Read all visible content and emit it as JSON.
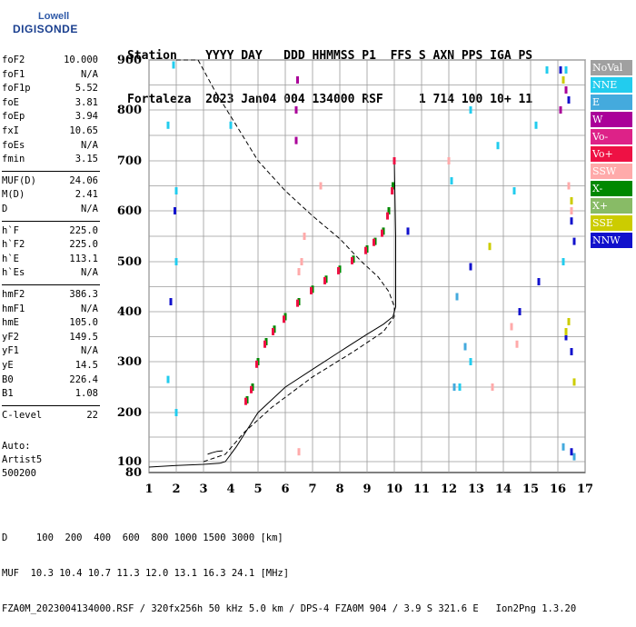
{
  "logo": {
    "line1": "Lowell",
    "line2": "DIGISONDE"
  },
  "header": {
    "line1": "Station    YYYY DAY   DDD HHMMSS P1  FFS S AXN PPS IGA PS",
    "line2": "Fortaleza  2023 Jan04 004 134000 RSF     1 714 100 10+ 11"
  },
  "params": {
    "group1": [
      {
        "k": "foF2",
        "v": "10.000"
      },
      {
        "k": "foF1",
        "v": "N/A"
      },
      {
        "k": "foF1p",
        "v": "5.52"
      },
      {
        "k": "foE",
        "v": "3.81"
      },
      {
        "k": "foEp",
        "v": "3.94"
      },
      {
        "k": "fxI",
        "v": "10.65"
      },
      {
        "k": "foEs",
        "v": "N/A"
      },
      {
        "k": "fmin",
        "v": "3.15"
      }
    ],
    "group2": [
      {
        "k": "MUF(D)",
        "v": "24.06"
      },
      {
        "k": "M(D)",
        "v": "2.41"
      },
      {
        "k": "D",
        "v": "N/A"
      }
    ],
    "group3": [
      {
        "k": "h`F",
        "v": "225.0"
      },
      {
        "k": "h`F2",
        "v": "225.0"
      },
      {
        "k": "h`E",
        "v": "113.1"
      },
      {
        "k": "h`Es",
        "v": "N/A"
      }
    ],
    "group4": [
      {
        "k": "hmF2",
        "v": "386.3"
      },
      {
        "k": "hmF1",
        "v": "N/A"
      },
      {
        "k": "hmE",
        "v": "105.0"
      },
      {
        "k": "yF2",
        "v": "149.5"
      },
      {
        "k": "yF1",
        "v": "N/A"
      },
      {
        "k": "yE",
        "v": "14.5"
      },
      {
        "k": "B0",
        "v": "226.4"
      },
      {
        "k": "B1",
        "v": "1.08"
      }
    ],
    "group5": [
      {
        "k": "C-level",
        "v": "22"
      }
    ]
  },
  "auto": {
    "line1": "Auto:",
    "line2": "Artist5",
    "line3": "500200"
  },
  "legend": [
    {
      "label": "NoVal",
      "color": "#a0a0a0"
    },
    {
      "label": "NNE",
      "color": "#22ccee"
    },
    {
      "label": "E",
      "color": "#44aadd"
    },
    {
      "label": "W",
      "color": "#aa0099"
    },
    {
      "label": "Vo-",
      "color": "#dd2288"
    },
    {
      "label": "Vo+",
      "color": "#ee1144"
    },
    {
      "label": "SSW",
      "color": "#ffaaaa"
    },
    {
      "label": "X-",
      "color": "#008800"
    },
    {
      "label": "X+",
      "color": "#88bb66"
    },
    {
      "label": "SSE",
      "color": "#cccc00"
    },
    {
      "label": "NNW",
      "color": "#1111cc"
    }
  ],
  "footer": {
    "line1": "D     100  200  400  600  800 1000 1500 3000 [km]",
    "line2": "MUF  10.3 10.4 10.7 11.3 12.0 13.1 16.3 24.1 [MHz]",
    "line3": "FZA0M_2023004134000.RSF / 320fx256h 50 kHz 5.0 km / DPS-4 FZA0M 904 / 3.9 S 321.6 E   Ion2Png 1.3.20"
  },
  "chart_data": {
    "type": "scatter",
    "x_ticks": [
      "1",
      "2",
      "3",
      "4",
      "5",
      "6",
      "7",
      "8",
      "9",
      "10",
      "11",
      "12",
      "13",
      "14",
      "15",
      "16",
      "17"
    ],
    "y_ticks": [
      "80",
      "100",
      "200",
      "300",
      "400",
      "500",
      "600",
      "700",
      "800",
      "900"
    ],
    "xlim": [
      1,
      17
    ],
    "ylim": [
      80,
      900
    ],
    "grid": true,
    "series": [
      {
        "name": "X-",
        "color": "#008800",
        "points": [
          [
            4.6,
            225
          ],
          [
            4.8,
            250
          ],
          [
            5.0,
            300
          ],
          [
            5.3,
            340
          ],
          [
            5.6,
            365
          ],
          [
            6.0,
            390
          ],
          [
            6.5,
            420
          ],
          [
            7.0,
            445
          ],
          [
            7.5,
            465
          ],
          [
            8.0,
            485
          ],
          [
            8.5,
            505
          ],
          [
            9.0,
            525
          ],
          [
            9.3,
            540
          ],
          [
            9.6,
            560
          ],
          [
            9.8,
            600
          ],
          [
            9.95,
            650
          ]
        ]
      },
      {
        "name": "Vo+",
        "color": "#ee1144",
        "points": [
          [
            4.55,
            222
          ],
          [
            4.75,
            245
          ],
          [
            4.95,
            295
          ],
          [
            5.25,
            335
          ],
          [
            5.55,
            360
          ],
          [
            5.95,
            385
          ],
          [
            6.45,
            417
          ],
          [
            6.95,
            442
          ],
          [
            7.45,
            462
          ],
          [
            7.95,
            482
          ],
          [
            8.45,
            502
          ],
          [
            8.95,
            522
          ],
          [
            9.25,
            538
          ],
          [
            9.55,
            556
          ],
          [
            9.75,
            590
          ],
          [
            9.92,
            640
          ],
          [
            10.0,
            700
          ]
        ]
      },
      {
        "name": "W",
        "color": "#aa0099",
        "points": [
          [
            6.4,
            740
          ],
          [
            6.4,
            800
          ],
          [
            6.45,
            860
          ],
          [
            16.1,
            800
          ],
          [
            16.3,
            840
          ]
        ]
      },
      {
        "name": "NNE",
        "color": "#22ccee",
        "points": [
          [
            1.7,
            770
          ],
          [
            1.9,
            890
          ],
          [
            2.0,
            640
          ],
          [
            2.0,
            500
          ],
          [
            2.0,
            200
          ],
          [
            1.7,
            265
          ],
          [
            4.0,
            770
          ],
          [
            12.1,
            660
          ],
          [
            12.8,
            800
          ],
          [
            13.8,
            730
          ],
          [
            14.4,
            640
          ],
          [
            15.2,
            770
          ],
          [
            15.6,
            880
          ],
          [
            16.3,
            880
          ],
          [
            16.2,
            500
          ],
          [
            12.8,
            300
          ],
          [
            12.4,
            250
          ]
        ]
      },
      {
        "name": "SSW",
        "color": "#ffaaaa",
        "points": [
          [
            6.5,
            480
          ],
          [
            6.6,
            500
          ],
          [
            6.7,
            550
          ],
          [
            7.3,
            650
          ],
          [
            12.0,
            700
          ],
          [
            14.3,
            370
          ],
          [
            14.5,
            335
          ],
          [
            13.6,
            250
          ],
          [
            16.4,
            650
          ],
          [
            16.5,
            600
          ],
          [
            6.5,
            120
          ]
        ]
      },
      {
        "name": "NNW",
        "color": "#1111cc",
        "points": [
          [
            1.8,
            420
          ],
          [
            1.95,
            600
          ],
          [
            16.1,
            880
          ],
          [
            16.4,
            820
          ],
          [
            16.5,
            580
          ],
          [
            16.6,
            540
          ],
          [
            16.5,
            320
          ],
          [
            16.3,
            350
          ],
          [
            16.5,
            120
          ],
          [
            15.3,
            460
          ],
          [
            10.5,
            560
          ],
          [
            12.8,
            490
          ],
          [
            14.6,
            400
          ]
        ]
      },
      {
        "name": "SSE",
        "color": "#cccc00",
        "points": [
          [
            16.2,
            860
          ],
          [
            16.5,
            620
          ],
          [
            16.4,
            380
          ],
          [
            16.3,
            360
          ],
          [
            13.5,
            530
          ],
          [
            16.6,
            260
          ]
        ]
      },
      {
        "name": "E",
        "color": "#44aadd",
        "points": [
          [
            12.3,
            430
          ],
          [
            12.6,
            330
          ],
          [
            12.2,
            250
          ],
          [
            16.2,
            130
          ],
          [
            16.6,
            110
          ]
        ]
      }
    ],
    "curves": [
      {
        "name": "dashed",
        "style": "dashed",
        "points": [
          [
            2.0,
            900
          ],
          [
            2.8,
            900
          ],
          [
            3.4,
            840
          ],
          [
            4.2,
            770
          ],
          [
            5.0,
            700
          ],
          [
            6.0,
            640
          ],
          [
            7.0,
            590
          ],
          [
            8.0,
            545
          ],
          [
            8.8,
            500
          ],
          [
            9.4,
            470
          ],
          [
            9.8,
            440
          ],
          [
            10.0,
            410
          ],
          [
            10.0,
            390
          ],
          [
            9.6,
            360
          ],
          [
            8.5,
            320
          ],
          [
            7.0,
            270
          ],
          [
            5.5,
            210
          ],
          [
            4.5,
            160
          ],
          [
            3.8,
            115
          ],
          [
            3.0,
            100
          ]
        ]
      },
      {
        "name": "solid",
        "style": "solid",
        "points": [
          [
            1.0,
            90
          ],
          [
            2.0,
            93
          ],
          [
            3.0,
            95
          ],
          [
            3.6,
            97
          ],
          [
            3.8,
            100
          ],
          [
            4.2,
            130
          ],
          [
            4.6,
            165
          ],
          [
            5.0,
            200
          ],
          [
            5.5,
            225
          ],
          [
            6.0,
            250
          ],
          [
            7.0,
            285
          ],
          [
            8.0,
            320
          ],
          [
            9.0,
            355
          ],
          [
            9.6,
            375
          ],
          [
            9.95,
            390
          ],
          [
            10.05,
            410
          ],
          [
            10.05,
            550
          ],
          [
            10.02,
            640
          ],
          [
            10.0,
            700
          ]
        ]
      },
      {
        "name": "small",
        "style": "solid",
        "points": [
          [
            3.15,
            115
          ],
          [
            3.3,
            118
          ],
          [
            3.5,
            121
          ],
          [
            3.7,
            122
          ]
        ]
      }
    ]
  }
}
